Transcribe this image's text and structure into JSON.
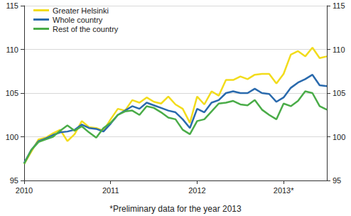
{
  "chart_data": {
    "type": "line",
    "annotation": "*Preliminary data for the year 2013",
    "categories": [
      "2010",
      null,
      null,
      null,
      null,
      null,
      null,
      null,
      null,
      null,
      null,
      null,
      "2011",
      null,
      null,
      null,
      null,
      null,
      null,
      null,
      null,
      null,
      null,
      null,
      "2012",
      null,
      null,
      null,
      null,
      null,
      null,
      null,
      null,
      null,
      null,
      null,
      "2013*",
      null,
      null,
      null,
      null,
      null,
      null
    ],
    "series": [
      {
        "name": "Greater Helsinki",
        "color": "#f2dc1c",
        "values": [
          96.9,
          98.3,
          99.7,
          99.9,
          100.4,
          100.8,
          99.5,
          100.3,
          101.8,
          101.1,
          101.0,
          100.7,
          102.0,
          103.2,
          103.0,
          104.2,
          103.9,
          104.5,
          104.0,
          103.8,
          104.6,
          103.7,
          103.2,
          101.6,
          104.6,
          103.7,
          105.2,
          104.7,
          106.5,
          106.5,
          106.9,
          106.6,
          107.1,
          107.2,
          107.2,
          106.1,
          107.2,
          109.4,
          109.8,
          109.2,
          110.2,
          109.0,
          109.2
        ]
      },
      {
        "name": "Whole country",
        "color": "#2a6aad",
        "values": [
          97.0,
          98.5,
          99.5,
          99.8,
          100.2,
          100.5,
          100.6,
          100.8,
          101.4,
          101.0,
          100.9,
          100.6,
          101.5,
          102.5,
          103.0,
          103.5,
          103.2,
          103.9,
          103.6,
          103.3,
          103.0,
          102.8,
          102.0,
          101.0,
          103.2,
          102.8,
          103.9,
          104.2,
          105.0,
          105.2,
          105.0,
          105.0,
          105.5,
          105.0,
          104.9,
          104.0,
          104.5,
          105.6,
          106.2,
          106.6,
          107.1,
          105.9,
          105.8
        ]
      },
      {
        "name": "Rest of the country",
        "color": "#4aac48",
        "values": [
          96.9,
          98.5,
          99.4,
          99.7,
          100.0,
          100.7,
          101.3,
          100.7,
          101.2,
          100.5,
          99.9,
          101.0,
          101.6,
          102.5,
          102.9,
          103.0,
          102.5,
          103.5,
          103.3,
          102.8,
          102.2,
          102.0,
          100.8,
          100.3,
          101.8,
          102.0,
          102.9,
          103.8,
          103.9,
          104.1,
          103.7,
          103.6,
          104.2,
          103.1,
          102.5,
          102.0,
          103.8,
          103.5,
          104.1,
          105.2,
          105.0,
          103.5,
          103.1
        ]
      }
    ],
    "ylim": [
      95,
      115
    ],
    "yticks": [
      95,
      100,
      105,
      110,
      115
    ],
    "y2lim": [
      95,
      115
    ],
    "y2ticks": [
      95,
      100,
      105,
      110,
      115
    ],
    "grid": true,
    "legend": "top-left"
  }
}
